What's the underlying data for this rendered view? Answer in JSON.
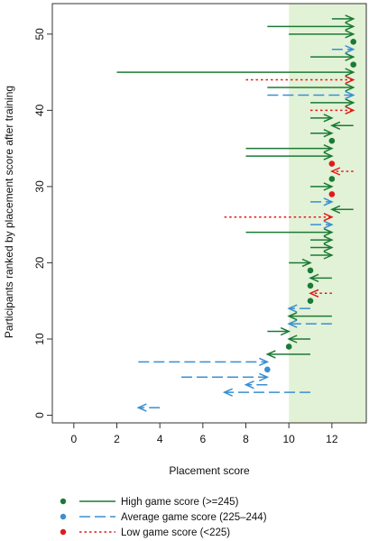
{
  "chart_data": {
    "type": "arrow-dot",
    "xlabel": "Placement score",
    "ylabel": "Participants ranked by placement score after training",
    "xlim": [
      -1,
      13.6
    ],
    "ylim": [
      -1,
      54
    ],
    "xticks": [
      0,
      2,
      4,
      6,
      8,
      10,
      12
    ],
    "yticks": [
      0,
      10,
      20,
      30,
      40,
      50
    ],
    "shaded_region_x": [
      10,
      13.6
    ],
    "shaded_color": "#e2f2d6",
    "series": [
      {
        "name": "High game score (>=245)",
        "key": "high",
        "color": "#1b7a35",
        "linestyle": "solid"
      },
      {
        "name": "Average game score (225–244)",
        "key": "avg",
        "color": "#3a8fd1",
        "linestyle": "dashed"
      },
      {
        "name": "Low game score (<225)",
        "key": "low",
        "color": "#e2191a",
        "linestyle": "dotted"
      }
    ],
    "participants": [
      {
        "rank": 1,
        "before": 4,
        "after": 3,
        "group": "avg"
      },
      {
        "rank": 3,
        "before": 11,
        "after": 7,
        "group": "avg"
      },
      {
        "rank": 4,
        "before": 9,
        "after": 8,
        "group": "avg"
      },
      {
        "rank": 5,
        "before": 5,
        "after": 9,
        "group": "avg"
      },
      {
        "rank": 6,
        "before": 9,
        "after": 9,
        "group": "avg"
      },
      {
        "rank": 7,
        "before": 3,
        "after": 9,
        "group": "avg"
      },
      {
        "rank": 8,
        "before": 11,
        "after": 9,
        "group": "high"
      },
      {
        "rank": 9,
        "before": 10,
        "after": 10,
        "group": "high"
      },
      {
        "rank": 10,
        "before": 11,
        "after": 10,
        "group": "high"
      },
      {
        "rank": 11,
        "before": 9,
        "after": 10,
        "group": "high"
      },
      {
        "rank": 12,
        "before": 12,
        "after": 10,
        "group": "avg"
      },
      {
        "rank": 13,
        "before": 12,
        "after": 10,
        "group": "high"
      },
      {
        "rank": 14,
        "before": 11,
        "after": 10,
        "group": "avg"
      },
      {
        "rank": 15,
        "before": 11,
        "after": 11,
        "group": "high"
      },
      {
        "rank": 16,
        "before": 12,
        "after": 11,
        "group": "low"
      },
      {
        "rank": 17,
        "before": 11,
        "after": 11,
        "group": "high"
      },
      {
        "rank": 18,
        "before": 12,
        "after": 11,
        "group": "high"
      },
      {
        "rank": 19,
        "before": 11,
        "after": 11,
        "group": "high"
      },
      {
        "rank": 20,
        "before": 10,
        "after": 11,
        "group": "high"
      },
      {
        "rank": 21,
        "before": 11,
        "after": 12,
        "group": "high"
      },
      {
        "rank": 22,
        "before": 11,
        "after": 12,
        "group": "high"
      },
      {
        "rank": 23,
        "before": 11,
        "after": 12,
        "group": "high"
      },
      {
        "rank": 24,
        "before": 8,
        "after": 12,
        "group": "high"
      },
      {
        "rank": 25,
        "before": 11,
        "after": 12,
        "group": "avg"
      },
      {
        "rank": 26,
        "before": 7,
        "after": 12,
        "group": "low"
      },
      {
        "rank": 27,
        "before": 13,
        "after": 12,
        "group": "high"
      },
      {
        "rank": 28,
        "before": 11,
        "after": 12,
        "group": "avg"
      },
      {
        "rank": 29,
        "before": 12,
        "after": 12,
        "group": "low"
      },
      {
        "rank": 30,
        "before": 11,
        "after": 12,
        "group": "high"
      },
      {
        "rank": 31,
        "before": 12,
        "after": 12,
        "group": "high"
      },
      {
        "rank": 32,
        "before": 13,
        "after": 12,
        "group": "low"
      },
      {
        "rank": 33,
        "before": 12,
        "after": 12,
        "group": "low"
      },
      {
        "rank": 34,
        "before": 8,
        "after": 12,
        "group": "high"
      },
      {
        "rank": 35,
        "before": 8,
        "after": 12,
        "group": "high"
      },
      {
        "rank": 36,
        "before": 12,
        "after": 12,
        "group": "high"
      },
      {
        "rank": 37,
        "before": 11,
        "after": 12,
        "group": "high"
      },
      {
        "rank": 38,
        "before": 13,
        "after": 12,
        "group": "high"
      },
      {
        "rank": 39,
        "before": 11,
        "after": 12,
        "group": "high"
      },
      {
        "rank": 40,
        "before": 11,
        "after": 13,
        "group": "low"
      },
      {
        "rank": 41,
        "before": 11,
        "after": 13,
        "group": "high"
      },
      {
        "rank": 42,
        "before": 9,
        "after": 13,
        "group": "avg"
      },
      {
        "rank": 43,
        "before": 9,
        "after": 13,
        "group": "high"
      },
      {
        "rank": 44,
        "before": 8,
        "after": 13,
        "group": "low"
      },
      {
        "rank": 45,
        "before": 2,
        "after": 13,
        "group": "high"
      },
      {
        "rank": 46,
        "before": 13,
        "after": 13,
        "group": "high"
      },
      {
        "rank": 47,
        "before": 11,
        "after": 13,
        "group": "high"
      },
      {
        "rank": 48,
        "before": 12,
        "after": 13,
        "group": "avg"
      },
      {
        "rank": 49,
        "before": 13,
        "after": 13,
        "group": "high"
      },
      {
        "rank": 50,
        "before": 10,
        "after": 13,
        "group": "high"
      },
      {
        "rank": 51,
        "before": 9,
        "after": 13,
        "group": "high"
      },
      {
        "rank": 52,
        "before": 12,
        "after": 13,
        "group": "high"
      }
    ]
  }
}
